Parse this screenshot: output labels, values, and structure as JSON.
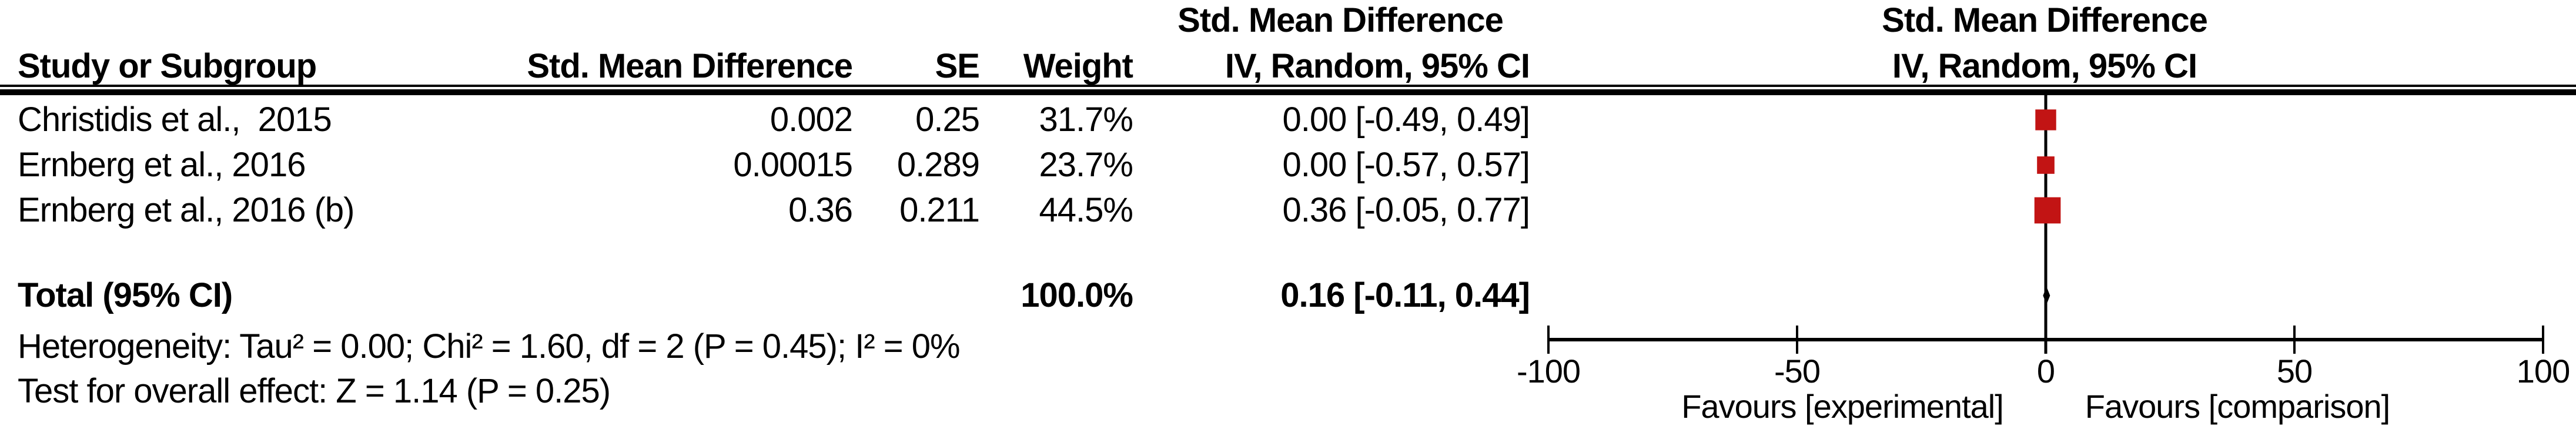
{
  "table": {
    "headers": {
      "study": "Study or Subgroup",
      "smd": "Std. Mean Difference",
      "se": "SE",
      "weight": "Weight",
      "ci_line1": "Std. Mean Difference",
      "ci_line2": "IV, Random, 95% CI"
    },
    "plot_header": {
      "line1": "Std. Mean Difference",
      "line2": "IV, Random, 95% CI"
    },
    "rows": [
      {
        "study": "Christidis et al.,  2015",
        "smd": "0.002",
        "se": "0.25",
        "weight": "31.7%",
        "ci": "0.00 [-0.49, 0.49]"
      },
      {
        "study": "Ernberg et al., 2016",
        "smd": "0.00015",
        "se": "0.289",
        "weight": "23.7%",
        "ci": "0.00 [-0.57, 0.57]"
      },
      {
        "study": "Ernberg et al., 2016 (b)",
        "smd": "0.36",
        "se": "0.211",
        "weight": "44.5%",
        "ci": "0.36 [-0.05, 0.77]"
      }
    ],
    "total": {
      "label": "Total (95% CI)",
      "weight": "100.0%",
      "ci": "0.16 [-0.11, 0.44]"
    },
    "heterogeneity": "Heterogeneity: Tau² = 0.00; Chi² = 1.60, df = 2 (P = 0.45); I² = 0%",
    "overall_effect": "Test for overall effect: Z = 1.14 (P = 0.25)"
  },
  "chart_data": {
    "type": "scatter",
    "subtype": "forest-plot",
    "title": "Std. Mean Difference",
    "model": "IV, Random, 95% CI",
    "studies": [
      {
        "label": "Christidis et al., 2015",
        "smd": 0.002,
        "se": 0.25,
        "weight_pct": 31.7,
        "ci_low": -0.49,
        "ci_high": 0.49
      },
      {
        "label": "Ernberg et al., 2016",
        "smd": 0.00015,
        "se": 0.289,
        "weight_pct": 23.7,
        "ci_low": -0.57,
        "ci_high": 0.57
      },
      {
        "label": "Ernberg et al., 2016 (b)",
        "smd": 0.36,
        "se": 0.211,
        "weight_pct": 44.5,
        "ci_low": -0.05,
        "ci_high": 0.77
      }
    ],
    "total": {
      "smd": 0.16,
      "ci_low": -0.11,
      "ci_high": 0.44,
      "weight_pct": 100.0
    },
    "x_axis": {
      "min": -100,
      "max": 100,
      "ticks": [
        -100,
        -50,
        0,
        50,
        100
      ],
      "tick_labels": [
        "-100",
        "-50",
        "0",
        "50",
        "100"
      ]
    },
    "favours_left": "Favours [experimental]",
    "favours_right": "Favours [comparison]",
    "marker_color": "#c21414",
    "diamond_color": "#000000",
    "line_color": "#000000",
    "legend_position": "none",
    "grid": false
  }
}
